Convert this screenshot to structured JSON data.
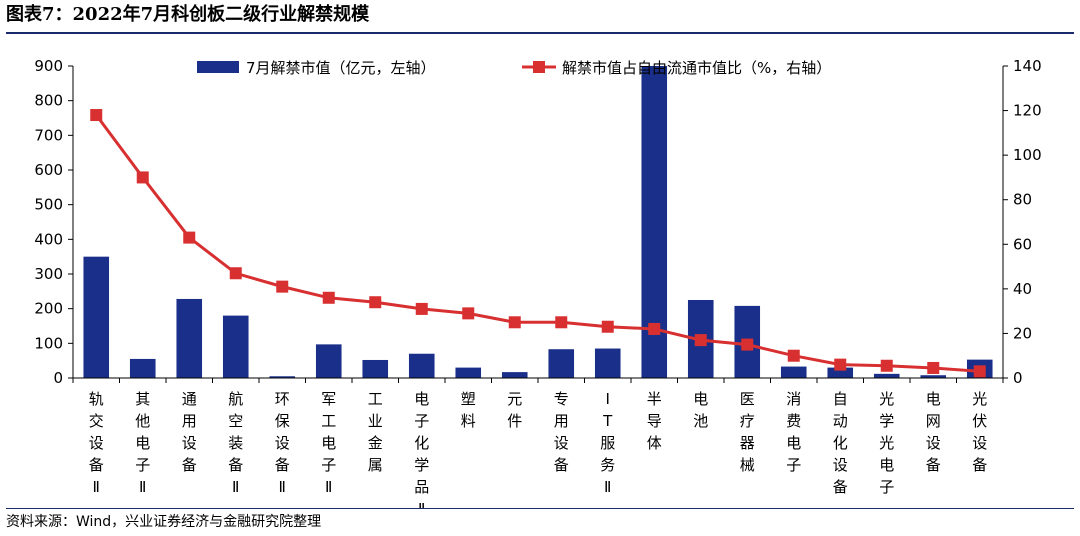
{
  "title": "图表7：2022年7月科创板二级行业解禁规模",
  "source": "资料来源：Wind，兴业证券经济与金融研究院整理",
  "chart_data": {
    "type": "bar",
    "categories": [
      "轨交设备Ⅱ",
      "其他电子Ⅱ",
      "通用设备",
      "航空装备Ⅱ",
      "环保设备Ⅱ",
      "军工电子Ⅱ",
      "工业金属",
      "电子化学品Ⅱ",
      "塑料",
      "元件",
      "专用设备",
      "IT服务Ⅱ",
      "半导体",
      "电池",
      "医疗器械",
      "消费电子",
      "自动化设备",
      "光学光电子",
      "电网设备",
      "光伏设备"
    ],
    "series": [
      {
        "name": "7月解禁市值（亿元，左轴）",
        "type": "bar",
        "axis": "left",
        "color": "#1a2f8a",
        "values": [
          350,
          55,
          228,
          180,
          5,
          97,
          52,
          70,
          30,
          17,
          83,
          85,
          900,
          225,
          208,
          33,
          30,
          12,
          8,
          53
        ]
      },
      {
        "name": "解禁市值占自由流通市值比（%，右轴）",
        "type": "line",
        "axis": "right",
        "color": "#d83030",
        "values": [
          118,
          90,
          63,
          47,
          41,
          36,
          34,
          31,
          29,
          25,
          25,
          23,
          22,
          17,
          15,
          10,
          6,
          5.5,
          4.5,
          3
        ]
      }
    ],
    "y_left": {
      "min": 0,
      "max": 900,
      "ticks": [
        "0",
        "100",
        "200",
        "300",
        "400",
        "500",
        "600",
        "700",
        "800",
        "900"
      ]
    },
    "y_right": {
      "min": 0,
      "max": 140,
      "ticks": [
        "0",
        "20",
        "40",
        "60",
        "80",
        "100",
        "120",
        "140"
      ]
    },
    "grid": false,
    "legend_placement": "top"
  }
}
